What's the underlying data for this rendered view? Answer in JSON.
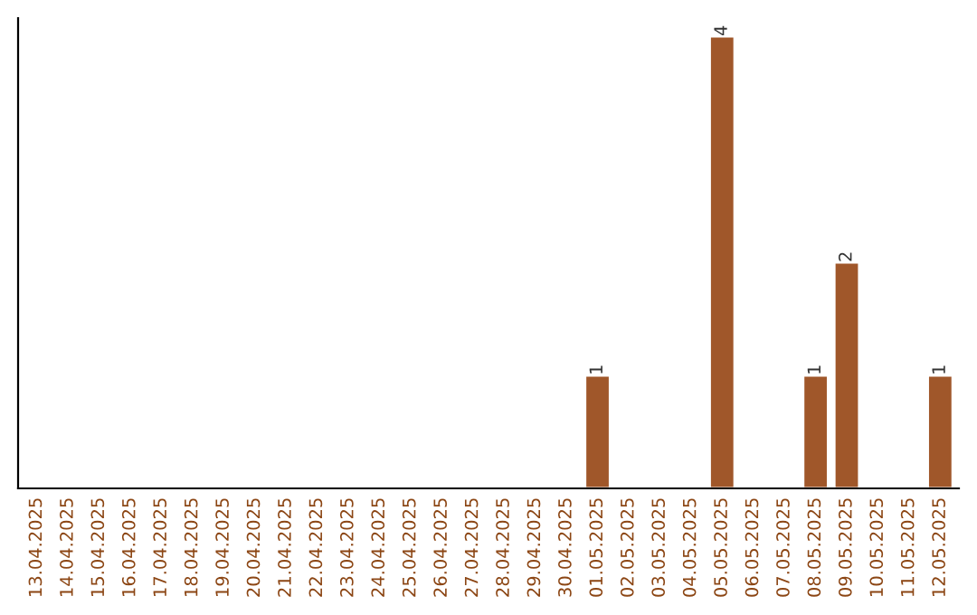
{
  "chart_data": {
    "type": "bar",
    "categories": [
      "13.04.2025",
      "14.04.2025",
      "15.04.2025",
      "16.04.2025",
      "17.04.2025",
      "18.04.2025",
      "19.04.2025",
      "20.04.2025",
      "21.04.2025",
      "22.04.2025",
      "23.04.2025",
      "24.04.2025",
      "25.04.2025",
      "26.04.2025",
      "27.04.2025",
      "28.04.2025",
      "29.04.2025",
      "30.04.2025",
      "01.05.2025",
      "02.05.2025",
      "03.05.2025",
      "04.05.2025",
      "05.05.2025",
      "06.05.2025",
      "07.05.2025",
      "08.05.2025",
      "09.05.2025",
      "10.05.2025",
      "11.05.2025",
      "12.05.2025"
    ],
    "values": [
      null,
      null,
      null,
      null,
      null,
      null,
      null,
      null,
      null,
      null,
      null,
      null,
      null,
      null,
      null,
      null,
      null,
      null,
      1,
      null,
      null,
      null,
      4,
      null,
      null,
      1,
      2,
      null,
      null,
      1
    ],
    "color": "#a0572a",
    "ylim": [
      0,
      4.16
    ],
    "data_labels": true,
    "tick_labels": "x",
    "grid": false,
    "legend": false
  }
}
